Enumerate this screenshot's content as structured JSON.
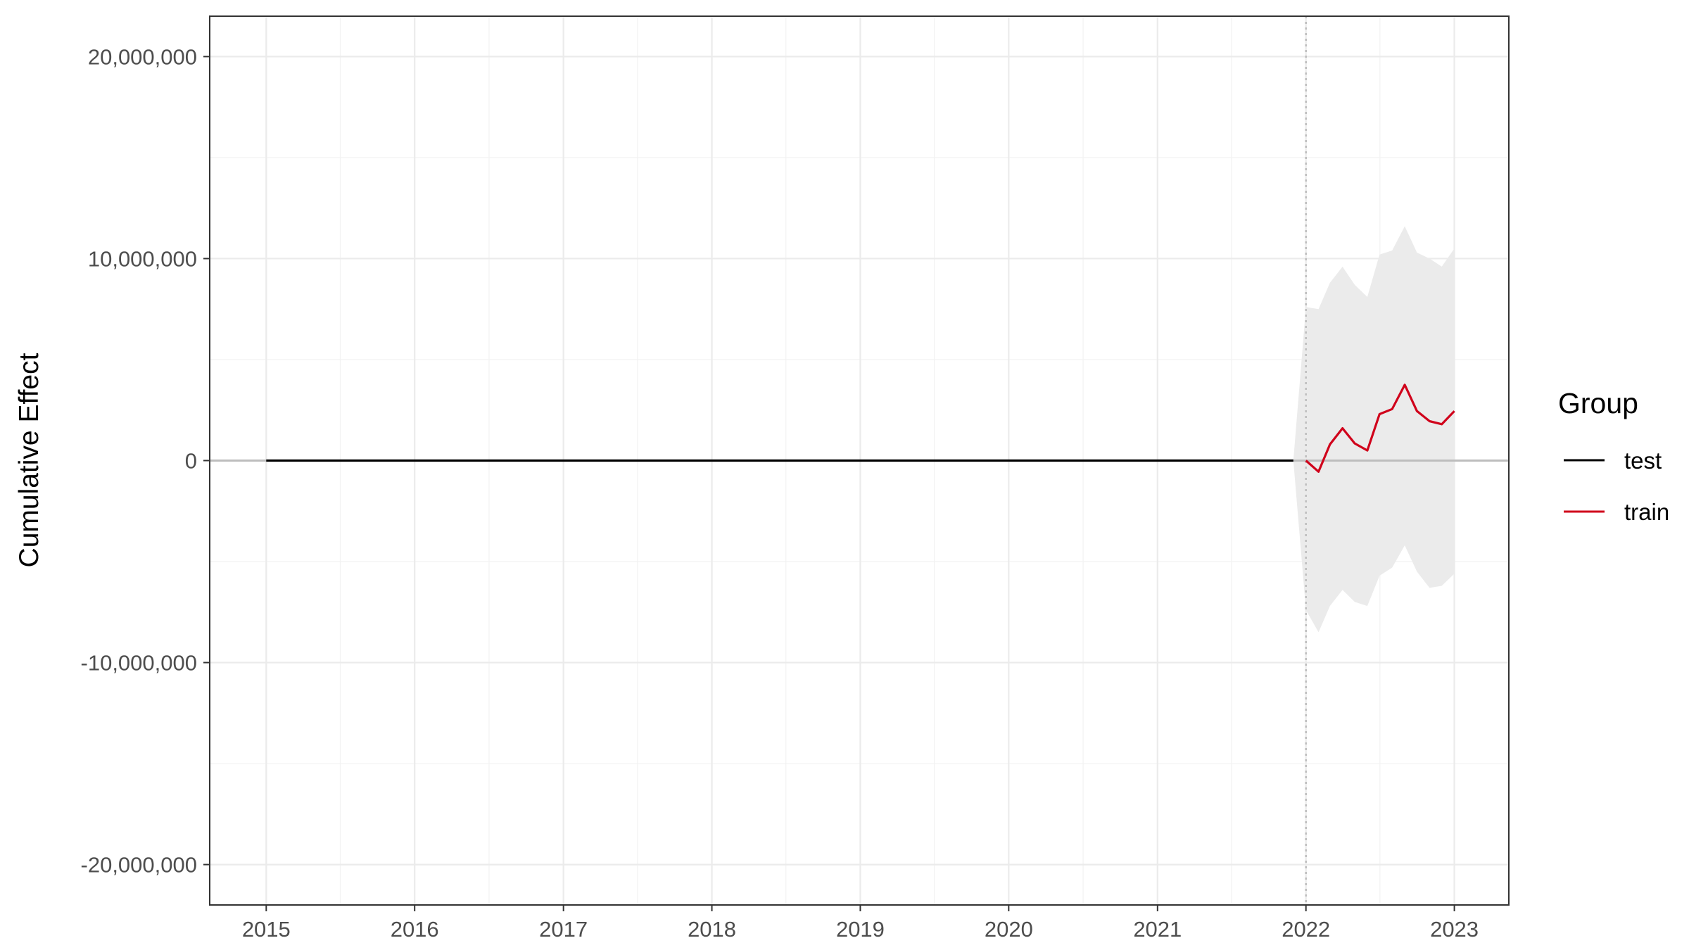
{
  "chart_data": {
    "type": "line",
    "title": "",
    "xlabel": "",
    "ylabel": "Cumulative Effect",
    "xlim": [
      "2014-08-15",
      "2023-05-15"
    ],
    "ylim": [
      -22000000,
      22000000
    ],
    "x_ticks": [
      "2015",
      "2016",
      "2017",
      "2018",
      "2019",
      "2020",
      "2021",
      "2022",
      "2023"
    ],
    "y_ticks": [
      -20000000,
      -10000000,
      0,
      10000000,
      20000000
    ],
    "y_tick_labels": [
      "-20,000,000",
      "-10,000,000",
      "0",
      "10,000,000",
      "20,000,000"
    ],
    "grid": true,
    "intervention_date": "2022-01-01",
    "legend": {
      "title": "Group",
      "placement": "right",
      "entries": [
        {
          "label": "test",
          "color": "#000000"
        },
        {
          "label": "train",
          "color": "#d0021b"
        }
      ]
    },
    "series": [
      {
        "name": "test",
        "color": "#000000",
        "x": [
          "2015-01-01",
          "2021-12-01"
        ],
        "y": [
          0,
          0
        ]
      },
      {
        "name": "train",
        "color": "#d0021b",
        "x": [
          "2022-01-01",
          "2022-02-01",
          "2022-03-01",
          "2022-04-01",
          "2022-05-01",
          "2022-06-01",
          "2022-07-01",
          "2022-08-01",
          "2022-09-01",
          "2022-10-01",
          "2022-11-01",
          "2022-12-01",
          "2023-01-01"
        ],
        "y": [
          0,
          -550000,
          800000,
          1600000,
          850000,
          500000,
          2300000,
          2550000,
          3750000,
          2450000,
          1950000,
          1800000,
          2450000
        ]
      }
    ],
    "interval": {
      "color": "#ebebeb",
      "x": [
        "2021-12-01",
        "2022-01-01",
        "2022-02-01",
        "2022-03-01",
        "2022-04-01",
        "2022-05-01",
        "2022-06-01",
        "2022-07-01",
        "2022-08-01",
        "2022-09-01",
        "2022-10-01",
        "2022-11-01",
        "2022-12-01",
        "2023-01-01"
      ],
      "upper": [
        0,
        7600000,
        7500000,
        8800000,
        9600000,
        8700000,
        8100000,
        10200000,
        10400000,
        11600000,
        10300000,
        10000000,
        9600000,
        10500000
      ],
      "lower": [
        0,
        -7400000,
        -8500000,
        -7200000,
        -6400000,
        -7000000,
        -7200000,
        -5700000,
        -5300000,
        -4200000,
        -5500000,
        -6300000,
        -6200000,
        -5600000
      ]
    }
  }
}
